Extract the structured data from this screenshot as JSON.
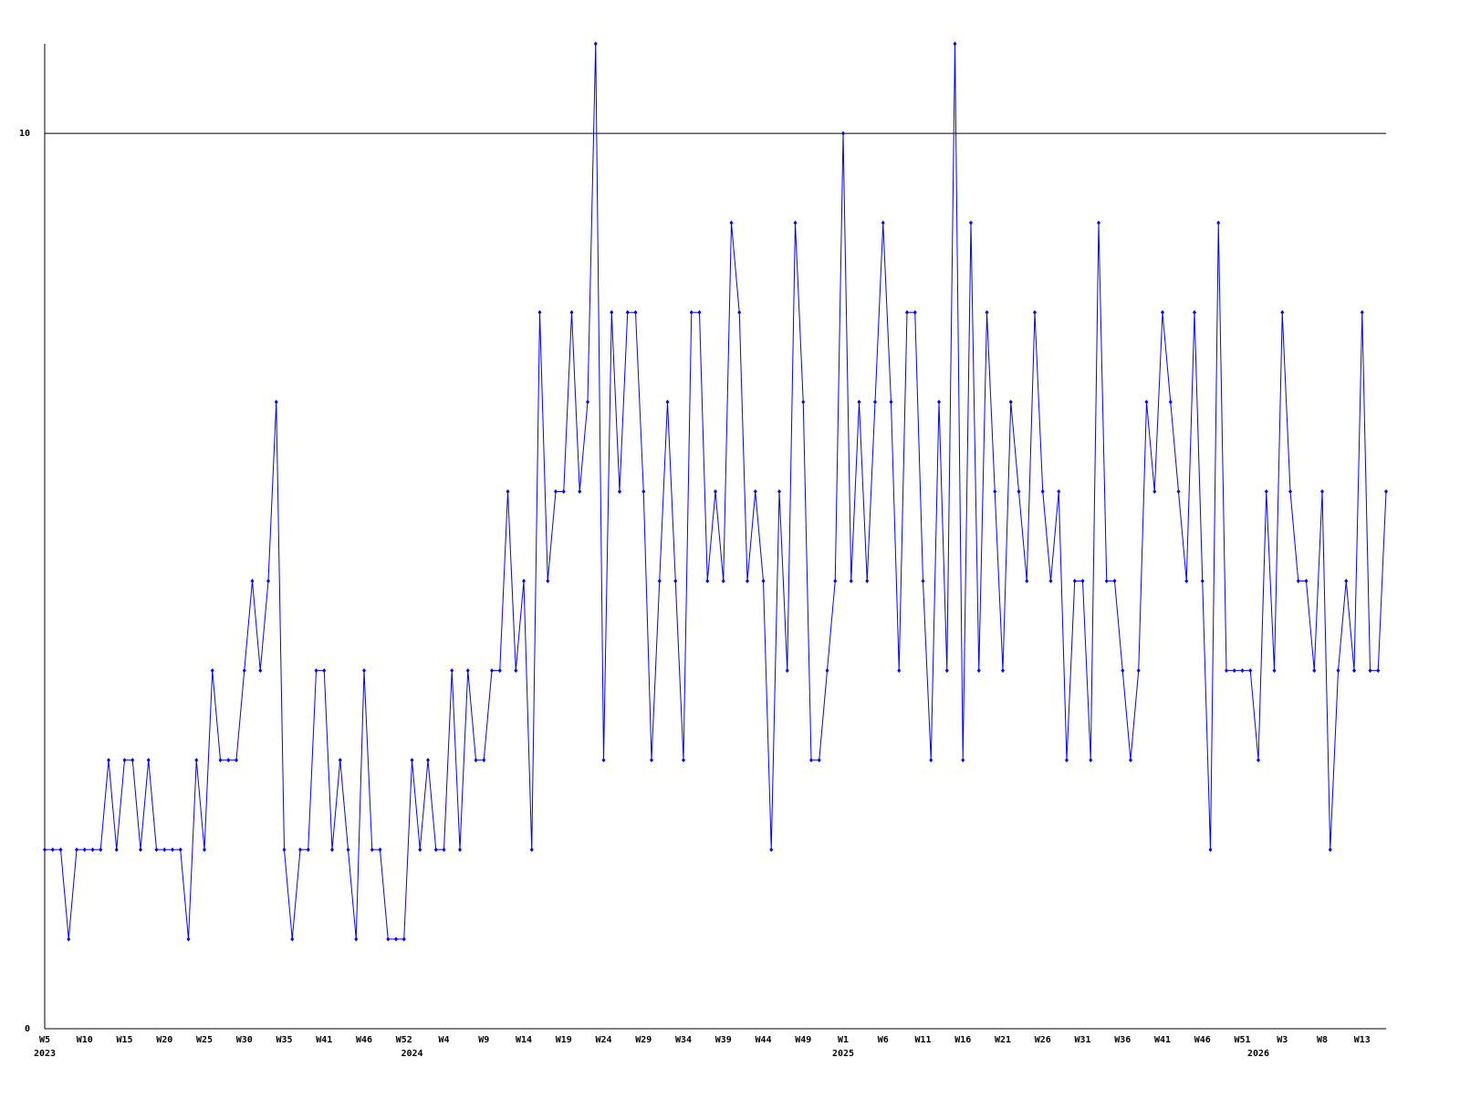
{
  "chart_data": {
    "type": "line",
    "color": "#0000ff",
    "ylim": [
      0,
      11
    ],
    "yticks": [
      0,
      10
    ],
    "grid": true,
    "categories": [
      "W5",
      null,
      null,
      null,
      null,
      "W10",
      null,
      null,
      null,
      null,
      "W15",
      null,
      null,
      null,
      null,
      "W20",
      null,
      null,
      null,
      null,
      "W25",
      null,
      null,
      null,
      null,
      "W30",
      null,
      null,
      null,
      null,
      "W35",
      null,
      null,
      null,
      null,
      "W41",
      null,
      null,
      null,
      null,
      "W46",
      null,
      null,
      null,
      null,
      "W52",
      null,
      null,
      null,
      null,
      "W4",
      null,
      null,
      null,
      null,
      "W9",
      null,
      null,
      null,
      null,
      "W14",
      null,
      null,
      null,
      null,
      "W19",
      null,
      null,
      null,
      null,
      "W24",
      null,
      null,
      null,
      null,
      "W29",
      null,
      null,
      null,
      null,
      "W34",
      null,
      null,
      null,
      null,
      "W39",
      null,
      null,
      null,
      null,
      "W44",
      null,
      null,
      null,
      null,
      "W49",
      null,
      null,
      null,
      null,
      "W1",
      null,
      null,
      null,
      null,
      "W6",
      null,
      null,
      null,
      null,
      "W11",
      null,
      null,
      null,
      null,
      "W16",
      null,
      null,
      null,
      null,
      "W21",
      null,
      null,
      null,
      null,
      "W26",
      null,
      null,
      null,
      null,
      "W31",
      null,
      null,
      null,
      null,
      "W36",
      null,
      null,
      null,
      null,
      "W41",
      null,
      null,
      null,
      null,
      "W46",
      null,
      null,
      null,
      null,
      "W51",
      null,
      null,
      null,
      null,
      "W3",
      null,
      null,
      null,
      null,
      "W8",
      null,
      null,
      null,
      null,
      "W13",
      null,
      null,
      null
    ],
    "year_labels": [
      "2023",
      null,
      null,
      null,
      null,
      null,
      null,
      null,
      null,
      null,
      null,
      null,
      null,
      null,
      null,
      null,
      null,
      null,
      null,
      null,
      null,
      null,
      null,
      null,
      null,
      null,
      null,
      null,
      null,
      null,
      null,
      null,
      null,
      null,
      null,
      null,
      null,
      null,
      null,
      null,
      null,
      null,
      null,
      null,
      null,
      null,
      "2024",
      null,
      null,
      null,
      null,
      null,
      null,
      null,
      null,
      null,
      null,
      null,
      null,
      null,
      null,
      null,
      null,
      null,
      null,
      null,
      null,
      null,
      null,
      null,
      null,
      null,
      null,
      null,
      null,
      null,
      null,
      null,
      null,
      null,
      null,
      null,
      null,
      null,
      null,
      null,
      null,
      null,
      null,
      null,
      null,
      null,
      null,
      null,
      null,
      null,
      null,
      null,
      null,
      null,
      "2025",
      null,
      null,
      null,
      null,
      null,
      null,
      null,
      null,
      null,
      null,
      null,
      null,
      null,
      null,
      null,
      null,
      null,
      null,
      null,
      null,
      null,
      null,
      null,
      null,
      null,
      null,
      null,
      null,
      null,
      null,
      null,
      null,
      null,
      null,
      null,
      null,
      null,
      null,
      null,
      null,
      null,
      null,
      null,
      null,
      null,
      null,
      null,
      null,
      null,
      null,
      null,
      "2026",
      null,
      null,
      null,
      null,
      null,
      null,
      null,
      null,
      null,
      null,
      null,
      null,
      null,
      null,
      null,
      null
    ],
    "values": [
      2,
      2,
      2,
      1,
      2,
      2,
      2,
      2,
      3,
      2,
      3,
      3,
      2,
      3,
      2,
      2,
      2,
      2,
      1,
      3,
      2,
      4,
      3,
      3,
      3,
      4,
      5,
      4,
      5,
      7,
      2,
      1,
      2,
      2,
      4,
      4,
      2,
      3,
      2,
      1,
      4,
      2,
      2,
      1,
      1,
      1,
      3,
      2,
      3,
      2,
      2,
      4,
      2,
      4,
      3,
      3,
      4,
      4,
      6,
      4,
      5,
      2,
      8,
      5,
      6,
      6,
      8,
      6,
      7,
      11,
      3,
      8,
      6,
      8,
      8,
      6,
      3,
      5,
      7,
      5,
      3,
      8,
      8,
      5,
      6,
      5,
      9,
      8,
      5,
      6,
      5,
      2,
      6,
      4,
      9,
      7,
      3,
      3,
      4,
      5,
      10,
      5,
      7,
      5,
      7,
      9,
      7,
      4,
      8,
      8,
      5,
      3,
      7,
      4,
      11,
      3,
      9,
      4,
      8,
      6,
      4,
      7,
      6,
      5,
      8,
      6,
      5,
      6,
      3,
      5,
      5,
      3,
      9,
      5,
      5,
      4,
      3,
      4,
      7,
      6,
      8,
      7,
      6,
      5,
      8,
      5,
      2,
      9,
      4,
      4,
      4,
      4,
      3,
      6,
      4,
      8,
      6,
      5,
      5,
      4,
      6,
      2,
      4,
      5,
      4,
      8,
      4,
      4,
      6
    ]
  }
}
